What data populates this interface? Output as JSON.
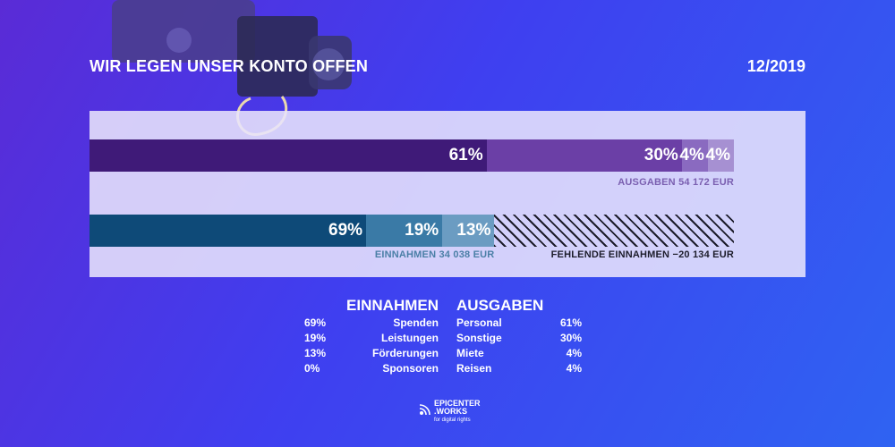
{
  "header": {
    "title": "WIR LEGEN UNSER KONTO OFFEN",
    "date": "12/2019"
  },
  "colors": {
    "expense_segments": [
      "#3f1a78",
      "#6b3fa6",
      "#8a6ac0",
      "#a690d2"
    ],
    "income_segments": [
      "#0e4a78",
      "#3a7aa6",
      "#6b9cc2"
    ],
    "missing_hatch": "#1c1c2a"
  },
  "chart_data": {
    "type": "bar",
    "stacked": true,
    "orientation": "horizontal",
    "series": [
      {
        "name": "AUSGABEN",
        "caption": "AUSGABEN 54 172 EUR",
        "categories": [
          "Personal",
          "Sonstige",
          "Miete",
          "Reisen"
        ],
        "values": [
          61,
          30,
          4,
          4
        ],
        "labels": [
          "61%",
          "30%",
          "4%",
          "4%"
        ],
        "total_eur": 54172
      },
      {
        "name": "EINNAHMEN",
        "caption": "EINNAHMEN 34 038 EUR",
        "categories": [
          "Spenden",
          "Leistungen",
          "Förderungen",
          "Sponsoren"
        ],
        "values": [
          69,
          19,
          13,
          0
        ],
        "labels": [
          "69%",
          "19%",
          "13%",
          ""
        ],
        "total_eur": 34038,
        "missing_caption": "FEHLENDE EINNAHMEN −20 134 EUR",
        "missing_eur": -20134
      }
    ]
  },
  "legend": {
    "income_heading": "EINNAHMEN",
    "expense_heading": "AUSGABEN",
    "income": [
      {
        "pct": "69%",
        "label": "Spenden"
      },
      {
        "pct": "19%",
        "label": "Leistungen"
      },
      {
        "pct": "13%",
        "label": "Förderungen"
      },
      {
        "pct": "0%",
        "label": "Sponsoren"
      }
    ],
    "expenses": [
      {
        "label": "Personal",
        "pct": "61%"
      },
      {
        "label": "Sonstige",
        "pct": "30%"
      },
      {
        "label": "Miete",
        "pct": "4%"
      },
      {
        "label": "Reisen",
        "pct": "4%"
      }
    ]
  },
  "logo": {
    "name_line1": "EPICENTER",
    "name_line2": ".WORKS",
    "tagline": "for digital rights"
  }
}
